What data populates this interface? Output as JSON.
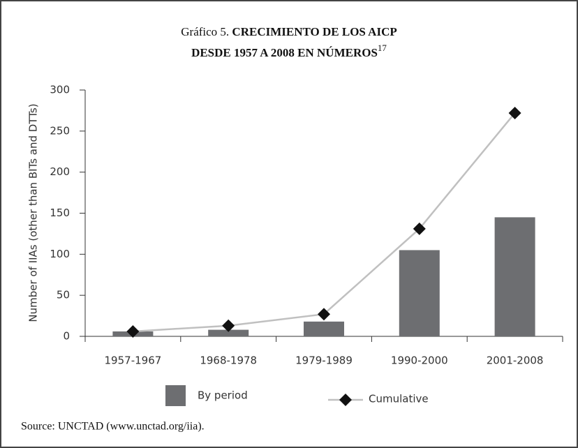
{
  "chart_data": {
    "type": "bar_line",
    "title": {
      "label": "Gráfico 5.",
      "lines": [
        "CRECIMIENTO DE LOS AICP",
        "DESDE 1957 A 2008 EN NÚMEROS"
      ],
      "note": "17"
    },
    "y_label": "Number of IIAs (other than BITs and DTTs)",
    "categories": [
      "1957-1967",
      "1968-1978",
      "1979-1989",
      "1990-2000",
      "2001-2008"
    ],
    "series": [
      {
        "name": "By period",
        "type": "bar",
        "color": "#6d6e71",
        "values": [
          6,
          8,
          18,
          105,
          145
        ]
      },
      {
        "name": "Cumulative",
        "type": "line",
        "color": "#c0c0c0",
        "marker_color": "#111111",
        "values": [
          6,
          13,
          27,
          131,
          272
        ]
      }
    ],
    "ylim": [
      0,
      300
    ],
    "yticks": [
      0,
      50,
      100,
      150,
      200,
      250,
      300
    ],
    "grid": false,
    "source": "Source: UNCTAD (www.unctad.org/iia)."
  }
}
